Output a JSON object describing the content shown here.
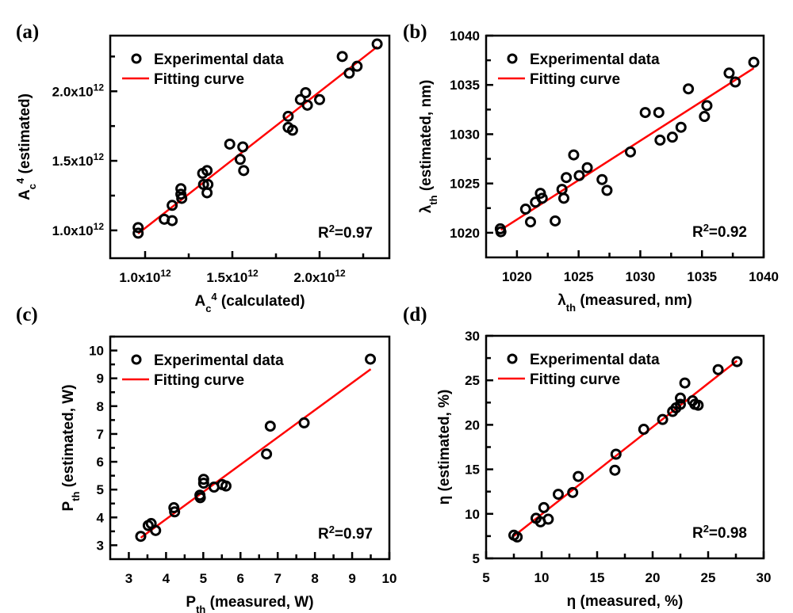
{
  "chart_data": [
    {
      "type": "scatter",
      "panel_label": "(a)",
      "xlabel": [
        {
          "t": "A"
        },
        {
          "sub": "c"
        },
        {
          "sup": "4"
        },
        {
          "t": " (calculated)"
        }
      ],
      "ylabel": [
        {
          "t": "A"
        },
        {
          "sub": "c"
        },
        {
          "sup": "4"
        },
        {
          "t": " (estimated)"
        }
      ],
      "unit_multiplier": 1000000000000.0,
      "xlim": [
        0.8,
        2.4
      ],
      "ylim": [
        0.8,
        2.4
      ],
      "xticks": {
        "labels": [
          {
            "v": 1.0,
            "t": "1.0x10",
            "sup": "12"
          },
          {
            "v": 1.5,
            "t": "1.5x10",
            "sup": "12"
          },
          {
            "v": 2.0,
            "t": "2.0x10",
            "sup": "12"
          }
        ],
        "minor_step": 0.25,
        "start": 1.0
      },
      "yticks": {
        "labels": [
          {
            "v": 1.0,
            "t": "1.0x10",
            "sup": "12"
          },
          {
            "v": 1.5,
            "t": "1.5x10",
            "sup": "12"
          },
          {
            "v": 2.0,
            "t": "2.0x10",
            "sup": "12"
          }
        ],
        "minor_step": 0.25,
        "start": 1.0
      },
      "points": [
        [
          0.96,
          1.02
        ],
        [
          0.96,
          0.98
        ],
        [
          1.11,
          1.08
        ],
        [
          1.155,
          1.07
        ],
        [
          1.155,
          1.18
        ],
        [
          1.205,
          1.3
        ],
        [
          1.205,
          1.26
        ],
        [
          1.21,
          1.23
        ],
        [
          1.33,
          1.41
        ],
        [
          1.355,
          1.43
        ],
        [
          1.335,
          1.33
        ],
        [
          1.36,
          1.33
        ],
        [
          1.355,
          1.27
        ],
        [
          1.485,
          1.62
        ],
        [
          1.56,
          1.6
        ],
        [
          1.545,
          1.51
        ],
        [
          1.565,
          1.43
        ],
        [
          1.82,
          1.82
        ],
        [
          1.82,
          1.74
        ],
        [
          1.845,
          1.72
        ],
        [
          1.89,
          1.94
        ],
        [
          1.92,
          1.99
        ],
        [
          1.93,
          1.9
        ],
        [
          2.0,
          1.94
        ],
        [
          2.13,
          2.25
        ],
        [
          2.17,
          2.13
        ],
        [
          2.215,
          2.18
        ],
        [
          2.33,
          2.34
        ]
      ],
      "fit": {
        "x": [
          0.96,
          2.33
        ],
        "y": [
          0.977,
          2.32
        ]
      },
      "legend": {
        "points": "Experimental data",
        "line": "Fitting curve",
        "placement": "top-left"
      },
      "r2": {
        "t": "R",
        "sup": "2",
        "v": "=0.97"
      }
    },
    {
      "type": "scatter",
      "panel_label": "(b)",
      "xlabel": [
        {
          "t": "λ"
        },
        {
          "sub": "th"
        },
        {
          "t": " (measured, nm)"
        }
      ],
      "ylabel": [
        {
          "t": "λ"
        },
        {
          "sub": "th"
        },
        {
          "t": " (estimated, nm)"
        }
      ],
      "xlim": [
        1017.5,
        1040
      ],
      "ylim": [
        1017.5,
        1040
      ],
      "xticks": {
        "labels": [
          {
            "v": 1020,
            "t": "1020"
          },
          {
            "v": 1025,
            "t": "1025"
          },
          {
            "v": 1030,
            "t": "1030"
          },
          {
            "v": 1035,
            "t": "1035"
          },
          {
            "v": 1040,
            "t": "1040"
          }
        ],
        "minor_step": 2.5,
        "start": 1020
      },
      "yticks": {
        "labels": [
          {
            "v": 1020,
            "t": "1020"
          },
          {
            "v": 1025,
            "t": "1025"
          },
          {
            "v": 1030,
            "t": "1030"
          },
          {
            "v": 1035,
            "t": "1035"
          },
          {
            "v": 1040,
            "t": "1040"
          }
        ],
        "minor_step": 2.5,
        "start": 1020
      },
      "points": [
        [
          1018.7,
          1020.1
        ],
        [
          1018.65,
          1020.4
        ],
        [
          1020.7,
          1022.4
        ],
        [
          1021.1,
          1021.1
        ],
        [
          1021.5,
          1023.1
        ],
        [
          1021.9,
          1024.0
        ],
        [
          1022.05,
          1023.5
        ],
        [
          1023.1,
          1021.2
        ],
        [
          1023.65,
          1024.4
        ],
        [
          1023.8,
          1023.5
        ],
        [
          1024.0,
          1025.6
        ],
        [
          1024.6,
          1027.9
        ],
        [
          1025.05,
          1025.8
        ],
        [
          1025.7,
          1026.6
        ],
        [
          1026.9,
          1025.4
        ],
        [
          1027.3,
          1024.3
        ],
        [
          1029.2,
          1028.2
        ],
        [
          1030.4,
          1032.2
        ],
        [
          1031.5,
          1032.2
        ],
        [
          1031.6,
          1029.4
        ],
        [
          1032.6,
          1029.7
        ],
        [
          1033.3,
          1030.7
        ],
        [
          1033.9,
          1034.6
        ],
        [
          1035.2,
          1031.8
        ],
        [
          1035.4,
          1032.9
        ],
        [
          1037.2,
          1036.2
        ],
        [
          1037.7,
          1035.3
        ],
        [
          1039.2,
          1037.3
        ]
      ],
      "fit": {
        "x": [
          1018.7,
          1039.2
        ],
        "y": [
          1020.3,
          1036.7
        ]
      },
      "legend": {
        "points": "Experimental data",
        "line": "Fitting curve",
        "placement": "top-left"
      },
      "r2": {
        "t": "R",
        "sup": "2",
        "v": "=0.92"
      }
    },
    {
      "type": "scatter",
      "panel_label": "(c)",
      "xlabel": [
        {
          "t": "P"
        },
        {
          "sub": "th"
        },
        {
          "t": " (measured, W)"
        }
      ],
      "ylabel": [
        {
          "t": "P"
        },
        {
          "sub": "th"
        },
        {
          "t": " (estimated, W)"
        }
      ],
      "xlim": [
        2.5,
        10
      ],
      "ylim": [
        2.5,
        10.5
      ],
      "xticks": {
        "labels": [
          {
            "v": 3,
            "t": "3"
          },
          {
            "v": 4,
            "t": "4"
          },
          {
            "v": 5,
            "t": "5"
          },
          {
            "v": 6,
            "t": "6"
          },
          {
            "v": 7,
            "t": "7"
          },
          {
            "v": 8,
            "t": "8"
          },
          {
            "v": 9,
            "t": "9"
          },
          {
            "v": 10,
            "t": "10"
          }
        ],
        "minor_step": 0.5,
        "start": 3
      },
      "yticks": {
        "labels": [
          {
            "v": 3,
            "t": "3"
          },
          {
            "v": 4,
            "t": "4"
          },
          {
            "v": 5,
            "t": "5"
          },
          {
            "v": 6,
            "t": "6"
          },
          {
            "v": 7,
            "t": "7"
          },
          {
            "v": 8,
            "t": "8"
          },
          {
            "v": 9,
            "t": "9"
          },
          {
            "v": 10,
            "t": "10"
          }
        ],
        "minor_step": 0.5,
        "start": 3
      },
      "points": [
        [
          3.32,
          3.32
        ],
        [
          3.52,
          3.71
        ],
        [
          3.6,
          3.78
        ],
        [
          3.72,
          3.53
        ],
        [
          4.21,
          4.35
        ],
        [
          4.23,
          4.2
        ],
        [
          4.91,
          4.8
        ],
        [
          4.92,
          4.71
        ],
        [
          5.01,
          5.37
        ],
        [
          5.01,
          5.23
        ],
        [
          5.29,
          5.09
        ],
        [
          5.51,
          5.18
        ],
        [
          5.61,
          5.13
        ],
        [
          6.7,
          6.28
        ],
        [
          6.8,
          7.28
        ],
        [
          7.71,
          7.4
        ],
        [
          9.49,
          9.69
        ]
      ],
      "fit": {
        "x": [
          3.32,
          9.5
        ],
        "y": [
          3.27,
          9.33
        ]
      },
      "legend": {
        "points": "Experimental data",
        "line": "Fitting curve",
        "placement": "top-left"
      },
      "r2": {
        "t": "R",
        "sup": "2",
        "v": "=0.97"
      }
    },
    {
      "type": "scatter",
      "panel_label": "(d)",
      "xlabel": [
        {
          "t": "η (measured, %)"
        }
      ],
      "ylabel": [
        {
          "t": "η (estimated, %)"
        }
      ],
      "xlim": [
        5,
        30
      ],
      "ylim": [
        5,
        30
      ],
      "xticks": {
        "labels": [
          {
            "v": 5,
            "t": "5"
          },
          {
            "v": 10,
            "t": "10"
          },
          {
            "v": 15,
            "t": "15"
          },
          {
            "v": 20,
            "t": "20"
          },
          {
            "v": 25,
            "t": "25"
          },
          {
            "v": 30,
            "t": "30"
          }
        ],
        "minor_step": 2.5,
        "start": 5
      },
      "yticks": {
        "labels": [
          {
            "v": 5,
            "t": "5"
          },
          {
            "v": 10,
            "t": "10"
          },
          {
            "v": 15,
            "t": "15"
          },
          {
            "v": 20,
            "t": "20"
          },
          {
            "v": 25,
            "t": "25"
          },
          {
            "v": 30,
            "t": "30"
          }
        ],
        "minor_step": 2.5,
        "start": 5
      },
      "points": [
        [
          7.5,
          7.6
        ],
        [
          7.8,
          7.4
        ],
        [
          9.5,
          9.5
        ],
        [
          9.9,
          9.1
        ],
        [
          10.2,
          10.7
        ],
        [
          10.6,
          9.4
        ],
        [
          11.5,
          12.2
        ],
        [
          12.8,
          12.4
        ],
        [
          13.3,
          14.2
        ],
        [
          16.6,
          14.9
        ],
        [
          16.7,
          16.7
        ],
        [
          19.2,
          19.5
        ],
        [
          20.9,
          20.6
        ],
        [
          21.8,
          21.5
        ],
        [
          22.1,
          21.9
        ],
        [
          22.5,
          22.3
        ],
        [
          22.5,
          23.0
        ],
        [
          22.9,
          24.7
        ],
        [
          23.6,
          22.7
        ],
        [
          23.8,
          22.3
        ],
        [
          24.1,
          22.2
        ],
        [
          25.9,
          26.2
        ],
        [
          27.6,
          27.1
        ]
      ],
      "fit": {
        "x": [
          7.5,
          27.6
        ],
        "y": [
          7.5,
          27.2
        ]
      },
      "legend": {
        "points": "Experimental data",
        "line": "Fitting curve",
        "placement": "top-left"
      },
      "r2": {
        "t": "R",
        "sup": "2",
        "v": "=0.98"
      }
    }
  ],
  "colors": {
    "points": "#000000",
    "fit": "#ff0000",
    "axes": "#000000"
  }
}
